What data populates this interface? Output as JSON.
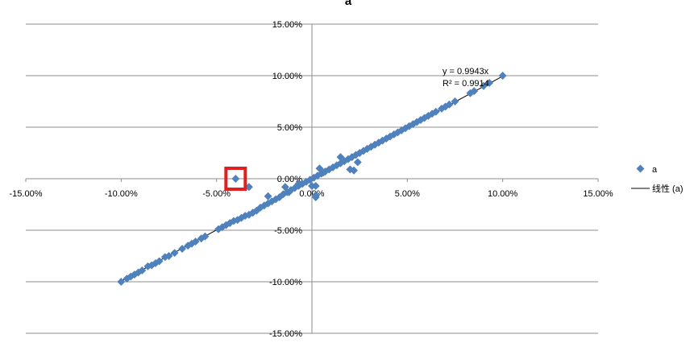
{
  "chart_data": {
    "type": "scatter",
    "title": "a",
    "xlabel": "",
    "ylabel": "",
    "xlim": [
      -0.15,
      0.15
    ],
    "ylim": [
      -0.15,
      0.15
    ],
    "x_ticks": [
      "-15.00%",
      "-10.00%",
      "-5.00%",
      "0.00%",
      "5.00%",
      "10.00%",
      "15.00%"
    ],
    "y_ticks": [
      "15.00%",
      "10.00%",
      "5.00%",
      "0.00%",
      "-5.00%",
      "-10.00%",
      "-15.00%"
    ],
    "grid": "horizontal",
    "legend_position": "right",
    "series": [
      {
        "name": "a",
        "marker": "diamond",
        "color": "#4f81bd",
        "points": [
          [
            -0.1,
            -0.1
          ],
          [
            -0.097,
            -0.097
          ],
          [
            -0.095,
            -0.095
          ],
          [
            -0.093,
            -0.093
          ],
          [
            -0.091,
            -0.091
          ],
          [
            -0.089,
            -0.089
          ],
          [
            -0.086,
            -0.085
          ],
          [
            -0.084,
            -0.084
          ],
          [
            -0.082,
            -0.082
          ],
          [
            -0.08,
            -0.08
          ],
          [
            -0.077,
            -0.076
          ],
          [
            -0.075,
            -0.075
          ],
          [
            -0.072,
            -0.072
          ],
          [
            -0.068,
            -0.068
          ],
          [
            -0.065,
            -0.065
          ],
          [
            -0.063,
            -0.063
          ],
          [
            -0.061,
            -0.061
          ],
          [
            -0.058,
            -0.058
          ],
          [
            -0.056,
            -0.056
          ],
          [
            -0.049,
            -0.049
          ],
          [
            -0.047,
            -0.047
          ],
          [
            -0.045,
            -0.045
          ],
          [
            -0.043,
            -0.043
          ],
          [
            -0.041,
            -0.041
          ],
          [
            -0.039,
            -0.04
          ],
          [
            -0.037,
            -0.038
          ],
          [
            -0.035,
            -0.036
          ],
          [
            -0.033,
            -0.035
          ],
          [
            -0.031,
            -0.033
          ],
          [
            -0.029,
            -0.031
          ],
          [
            -0.027,
            -0.028
          ],
          [
            -0.025,
            -0.026
          ],
          [
            -0.023,
            -0.024
          ],
          [
            -0.021,
            -0.022
          ],
          [
            -0.019,
            -0.02
          ],
          [
            -0.017,
            -0.018
          ],
          [
            -0.015,
            -0.015
          ],
          [
            -0.013,
            -0.013
          ],
          [
            -0.011,
            -0.011
          ],
          [
            -0.009,
            -0.009
          ],
          [
            -0.007,
            -0.007
          ],
          [
            -0.005,
            -0.005
          ],
          [
            -0.003,
            -0.003
          ],
          [
            -0.001,
            -0.001
          ],
          [
            0.001,
            0.001
          ],
          [
            0.003,
            0.003
          ],
          [
            0.005,
            0.005
          ],
          [
            0.007,
            0.007
          ],
          [
            0.009,
            0.009
          ],
          [
            0.011,
            0.011
          ],
          [
            0.013,
            0.013
          ],
          [
            0.015,
            0.015
          ],
          [
            0.017,
            0.017
          ],
          [
            0.019,
            0.019
          ],
          [
            0.021,
            0.021
          ],
          [
            0.023,
            0.023
          ],
          [
            0.025,
            0.025
          ],
          [
            0.027,
            0.027
          ],
          [
            0.029,
            0.029
          ],
          [
            0.031,
            0.031
          ],
          [
            0.033,
            0.033
          ],
          [
            0.035,
            0.035
          ],
          [
            0.037,
            0.037
          ],
          [
            0.039,
            0.039
          ],
          [
            0.041,
            0.041
          ],
          [
            0.043,
            0.043
          ],
          [
            0.045,
            0.045
          ],
          [
            0.047,
            0.047
          ],
          [
            0.049,
            0.049
          ],
          [
            0.051,
            0.051
          ],
          [
            0.053,
            0.053
          ],
          [
            0.055,
            0.055
          ],
          [
            0.057,
            0.057
          ],
          [
            0.059,
            0.059
          ],
          [
            0.061,
            0.061
          ],
          [
            0.063,
            0.063
          ],
          [
            0.065,
            0.065
          ],
          [
            0.068,
            0.068
          ],
          [
            0.07,
            0.07
          ],
          [
            0.072,
            0.072
          ],
          [
            0.075,
            0.075
          ],
          [
            0.083,
            0.083
          ],
          [
            0.085,
            0.085
          ],
          [
            0.09,
            0.09
          ],
          [
            0.093,
            0.093
          ],
          [
            0.1,
            0.1
          ],
          [
            -0.04,
            0.0
          ],
          [
            -0.033,
            -0.008
          ],
          [
            -0.023,
            -0.017
          ],
          [
            -0.014,
            -0.008
          ],
          [
            -0.012,
            -0.013
          ],
          [
            -0.007,
            -0.005
          ],
          [
            0.0,
            -0.007
          ],
          [
            0.002,
            -0.007
          ],
          [
            0.002,
            -0.018
          ],
          [
            0.002,
            -0.016
          ],
          [
            0.004,
            0.01
          ],
          [
            0.006,
            0.006
          ],
          [
            0.015,
            0.021
          ],
          [
            0.02,
            0.009
          ],
          [
            0.022,
            0.008
          ],
          [
            0.024,
            0.016
          ]
        ]
      }
    ],
    "trendline": {
      "name": "线性 (a)",
      "slope": 0.9943,
      "x_range": [
        -0.1,
        0.1
      ],
      "equation": "y = 0.9943x",
      "r2_label": "R² = 0.9914"
    },
    "annotation": {
      "type": "highlight-box",
      "color": "#e02020",
      "point": [
        -0.04,
        0.0
      ]
    }
  }
}
